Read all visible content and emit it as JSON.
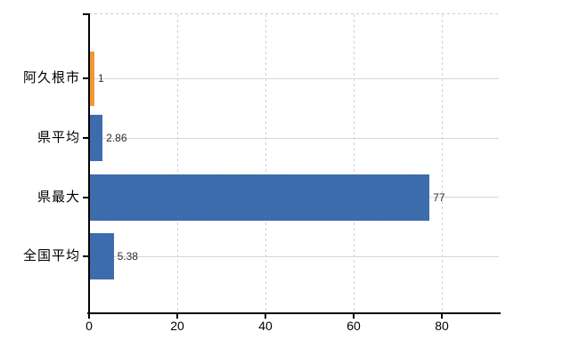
{
  "chart_data": {
    "type": "bar",
    "orientation": "horizontal",
    "categories": [
      "阿久根市",
      "県平均",
      "県最大",
      "全国平均"
    ],
    "values": [
      1,
      2.86,
      77,
      5.38
    ],
    "value_labels": [
      "1",
      "2.86",
      "77",
      "5.38"
    ],
    "series": [
      {
        "name": "阿久根市",
        "values": [
          1
        ]
      },
      {
        "name": "県平均",
        "values": [
          2.86
        ]
      },
      {
        "name": "県最大",
        "values": [
          77
        ]
      },
      {
        "name": "全国平均",
        "values": [
          5.38
        ]
      }
    ],
    "x_ticks": [
      "0",
      "20",
      "40",
      "60",
      "80"
    ],
    "x_tick_values": [
      0,
      20,
      40,
      60,
      80
    ],
    "xlim": [
      0,
      93.5
    ],
    "highlight_index": 0,
    "grid": true,
    "legend_position": "none",
    "colors": {
      "highlight_bar": "#ee9036",
      "default_bar": "#3d6cb0",
      "axis": "#000000",
      "gridline_solid": "#d6d9d1",
      "gridline_dashed": "#d2ced2",
      "category_text": "#000000",
      "value_text": "#2e2e2e"
    }
  }
}
